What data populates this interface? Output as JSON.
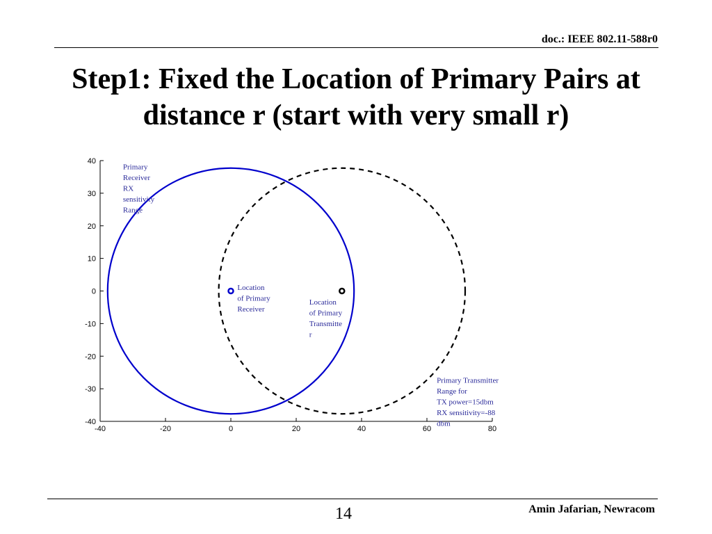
{
  "header": {
    "doc_id": "doc.: IEEE 802.11-588r0"
  },
  "slide": {
    "title_line1": "Step1: Fixed the Location of Primary Pairs at",
    "title_line2": "distance r (start with very small r)",
    "page_number": "14",
    "author": "Amin Jafarian, Newracom"
  },
  "chart_data": {
    "type": "scatter",
    "title": "",
    "xlabel": "",
    "ylabel": "",
    "xlim": [
      -40,
      80
    ],
    "ylim": [
      -40,
      40
    ],
    "xticks": [
      -40,
      -20,
      0,
      20,
      40,
      60,
      80
    ],
    "yticks": [
      40,
      30,
      20,
      10,
      0,
      -10,
      -20,
      -30,
      -40
    ],
    "grid": false,
    "series": [
      {
        "kind": "circle",
        "cx": 0,
        "cy": 0,
        "r": 37.7,
        "color": "#0000cc",
        "style": "solid"
      },
      {
        "kind": "circle",
        "cx": 34,
        "cy": 0,
        "r": 37.7,
        "color": "#000000",
        "style": "dashed"
      },
      {
        "kind": "marker",
        "x": 0,
        "y": 0,
        "color": "#0000cc"
      },
      {
        "kind": "marker",
        "x": 34,
        "y": 0,
        "color": "#000000"
      }
    ],
    "annotations": [
      {
        "x": -33,
        "y": 39.5,
        "lines": [
          "Primary",
          "Receiver",
          "RX",
          "sensitivity",
          "Range"
        ]
      },
      {
        "x": 2,
        "y": 2.5,
        "lines": [
          "Location",
          "of Primary",
          "Receiver"
        ]
      },
      {
        "x": 24,
        "y": -2,
        "lines": [
          "Location",
          "of Primary",
          "Transmitte",
          "r"
        ]
      },
      {
        "x": 63,
        "y": -26,
        "lines": [
          "Primary Transmitter",
          "Range for",
          "TX power=15dbm",
          "RX sensitivity=-88",
          "dbm"
        ]
      }
    ]
  }
}
